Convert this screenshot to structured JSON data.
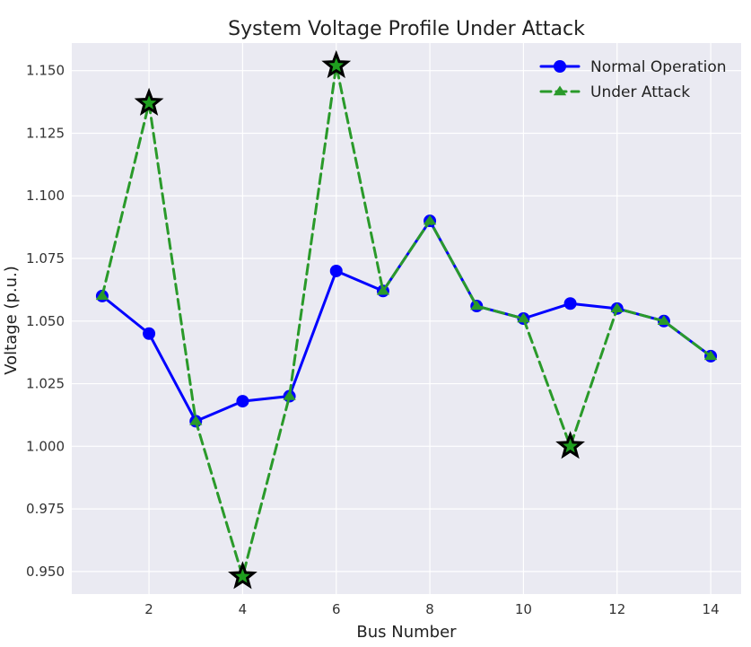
{
  "chart_data": {
    "type": "line",
    "title": "System Voltage Profile Under Attack",
    "xlabel": "Bus Number",
    "ylabel": "Voltage (p.u.)",
    "x": [
      1,
      2,
      3,
      4,
      5,
      6,
      7,
      8,
      9,
      10,
      11,
      12,
      13,
      14
    ],
    "xlim": [
      0.35,
      14.65
    ],
    "ylim": [
      0.941,
      1.161
    ],
    "xticks": [
      2,
      4,
      6,
      8,
      10,
      12,
      14
    ],
    "yticks": [
      0.95,
      0.975,
      1.0,
      1.025,
      1.05,
      1.075,
      1.1,
      1.125,
      1.15
    ],
    "xtick_labels": [
      "2",
      "4",
      "6",
      "8",
      "10",
      "12",
      "14"
    ],
    "ytick_labels": [
      "0.950",
      "0.975",
      "1.000",
      "1.025",
      "1.050",
      "1.075",
      "1.100",
      "1.125",
      "1.150"
    ],
    "grid": true,
    "legend_position": "top-right",
    "series": [
      {
        "name": "Normal Operation",
        "values": [
          1.06,
          1.045,
          1.01,
          1.018,
          1.02,
          1.07,
          1.062,
          1.09,
          1.056,
          1.051,
          1.057,
          1.055,
          1.05,
          1.036
        ],
        "color": "#0000ff",
        "line_style": "solid",
        "marker": "circle"
      },
      {
        "name": "Under Attack",
        "values": [
          1.06,
          1.137,
          1.01,
          0.948,
          1.02,
          1.152,
          1.062,
          1.09,
          1.056,
          1.051,
          1.0,
          1.055,
          1.05,
          1.036
        ],
        "color": "#2a9a2a",
        "line_style": "dashed",
        "marker": "triangle"
      }
    ],
    "highlighted_points": [
      {
        "x": 2,
        "y": 1.137
      },
      {
        "x": 4,
        "y": 0.948
      },
      {
        "x": 6,
        "y": 1.152
      },
      {
        "x": 11,
        "y": 1.0
      }
    ],
    "highlight_marker": "star",
    "highlight_fill": "#1f9f1f",
    "highlight_stroke": "#000000",
    "background_color": "#eaeaf2",
    "grid_color": "#ffffff"
  }
}
